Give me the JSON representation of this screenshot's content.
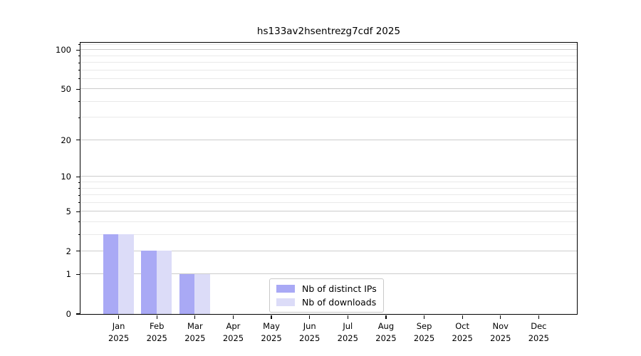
{
  "chart_data": {
    "type": "bar",
    "title": "hs133av2hsentrezg7cdf 2025",
    "xlabel": "",
    "ylabel": "",
    "yscale": "log1p",
    "ylim": [
      0,
      114
    ],
    "grid": "on",
    "legend_position": "lower center",
    "yticks": [
      0,
      1,
      2,
      5,
      10,
      20,
      50,
      100
    ],
    "minor_gridlines": [
      3,
      4,
      6,
      7,
      8,
      9,
      30,
      40,
      60,
      70,
      80,
      90,
      110
    ],
    "months": [
      {
        "month": "Jan",
        "year": "2025"
      },
      {
        "month": "Feb",
        "year": "2025"
      },
      {
        "month": "Mar",
        "year": "2025"
      },
      {
        "month": "Apr",
        "year": "2025"
      },
      {
        "month": "May",
        "year": "2025"
      },
      {
        "month": "Jun",
        "year": "2025"
      },
      {
        "month": "Jul",
        "year": "2025"
      },
      {
        "month": "Aug",
        "year": "2025"
      },
      {
        "month": "Sep",
        "year": "2025"
      },
      {
        "month": "Oct",
        "year": "2025"
      },
      {
        "month": "Nov",
        "year": "2025"
      },
      {
        "month": "Dec",
        "year": "2025"
      }
    ],
    "series": [
      {
        "name": "Nb of distinct IPs",
        "color": "#a9a9f5",
        "values": [
          3,
          2,
          1,
          0,
          0,
          0,
          0,
          0,
          0,
          0,
          0,
          0
        ]
      },
      {
        "name": "Nb of downloads",
        "color": "#dcdcf8",
        "values": [
          3,
          2,
          1,
          0,
          0,
          0,
          0,
          0,
          0,
          0,
          0,
          0
        ]
      }
    ]
  }
}
